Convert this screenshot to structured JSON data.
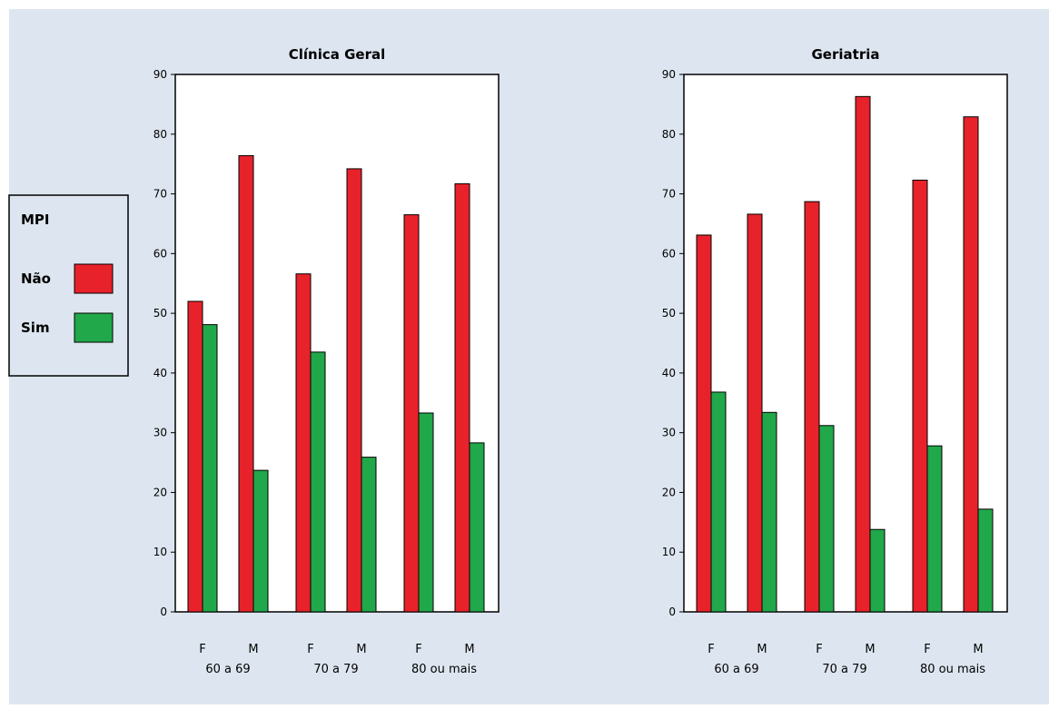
{
  "colors": {
    "background": "#dde6f0",
    "plot_area": "#ffffff",
    "nao": "#e8222a",
    "sim": "#21a84a",
    "border": "#000000"
  },
  "legend": {
    "title": "MPI",
    "items": [
      {
        "label": "Não",
        "color": "#e8222a"
      },
      {
        "label": "Sim",
        "color": "#21a84a"
      }
    ]
  },
  "chart_data": [
    {
      "type": "bar",
      "title": "Clínica Geral",
      "ylim": [
        0,
        90
      ],
      "yticks": [
        0,
        10,
        20,
        30,
        40,
        50,
        60,
        70,
        80,
        90
      ],
      "groups": [
        "60 a 69",
        "70 a 79",
        "80 ou mais"
      ],
      "subcategories": [
        "F",
        "M"
      ],
      "categories": [
        "F 60 a 69",
        "M 60 a 69",
        "F 70 a 79",
        "M 70 a 79",
        "F 80 ou mais",
        "M 80 ou mais"
      ],
      "series": [
        {
          "name": "Não",
          "values": [
            52,
            76.4,
            56.6,
            74.2,
            66.5,
            71.7
          ]
        },
        {
          "name": "Sim",
          "values": [
            48.1,
            23.7,
            43.5,
            25.9,
            33.3,
            28.3
          ]
        }
      ],
      "grid": false
    },
    {
      "type": "bar",
      "title": "Geriatria",
      "ylim": [
        0,
        90
      ],
      "yticks": [
        0,
        10,
        20,
        30,
        40,
        50,
        60,
        70,
        80,
        90
      ],
      "groups": [
        "60 a 69",
        "70 a 79",
        "80 ou mais"
      ],
      "subcategories": [
        "F",
        "M"
      ],
      "categories": [
        "F 60 a 69",
        "M 60 a 69",
        "F 70 a 79",
        "M 70 a 79",
        "F 80 ou mais",
        "M 80 ou mais"
      ],
      "series": [
        {
          "name": "Não",
          "values": [
            63.1,
            66.6,
            68.7,
            86.3,
            72.3,
            82.9
          ]
        },
        {
          "name": "Sim",
          "values": [
            36.8,
            33.4,
            31.2,
            13.8,
            27.8,
            17.2
          ]
        }
      ],
      "grid": false
    }
  ]
}
